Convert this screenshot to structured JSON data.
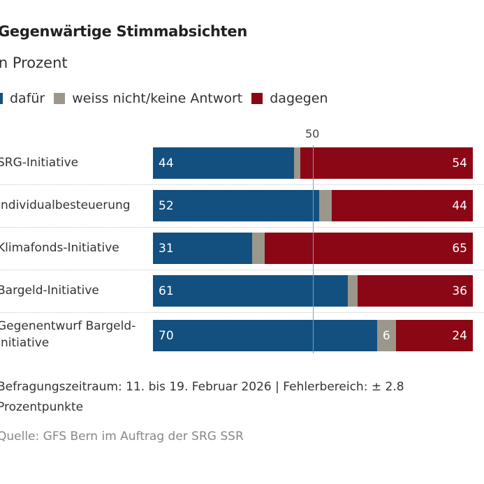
{
  "chart_data": {
    "type": "bar",
    "orientation": "horizontal",
    "stacked": true,
    "title": "Gegenwärtige Stimmabsichten",
    "subtitle": "in Prozent",
    "reference_line": {
      "value": 50,
      "label": "50"
    },
    "xlim": [
      0,
      100
    ],
    "categories": [
      "SRG-Initiative",
      "Individualbesteuerung",
      "Klimafonds-Initiative",
      "Bargeld-Initiative",
      "Gegenentwurf Bargeld-Initiative"
    ],
    "series": [
      {
        "name": "dafür",
        "color": "#13507f",
        "values": [
          44,
          52,
          31,
          61,
          70
        ]
      },
      {
        "name": "weiss nicht/keine Antwort",
        "color": "#9b978b",
        "values": [
          2,
          4,
          4,
          3,
          6
        ]
      },
      {
        "name": "dagegen",
        "color": "#8b0715",
        "values": [
          54,
          44,
          65,
          36,
          24
        ]
      }
    ],
    "shown_labels": {
      "weiss nicht/keine Antwort": [
        false,
        false,
        false,
        false,
        true
      ]
    },
    "legend_position": "top"
  },
  "footer": {
    "note": "Befragungszeitraum: 11. bis 19. Februar 2026 | Fehlerbereich: ± 2.8 Prozentpunkte",
    "source": "Quelle: GFS Bern im Auftrag der SRG SSR"
  }
}
